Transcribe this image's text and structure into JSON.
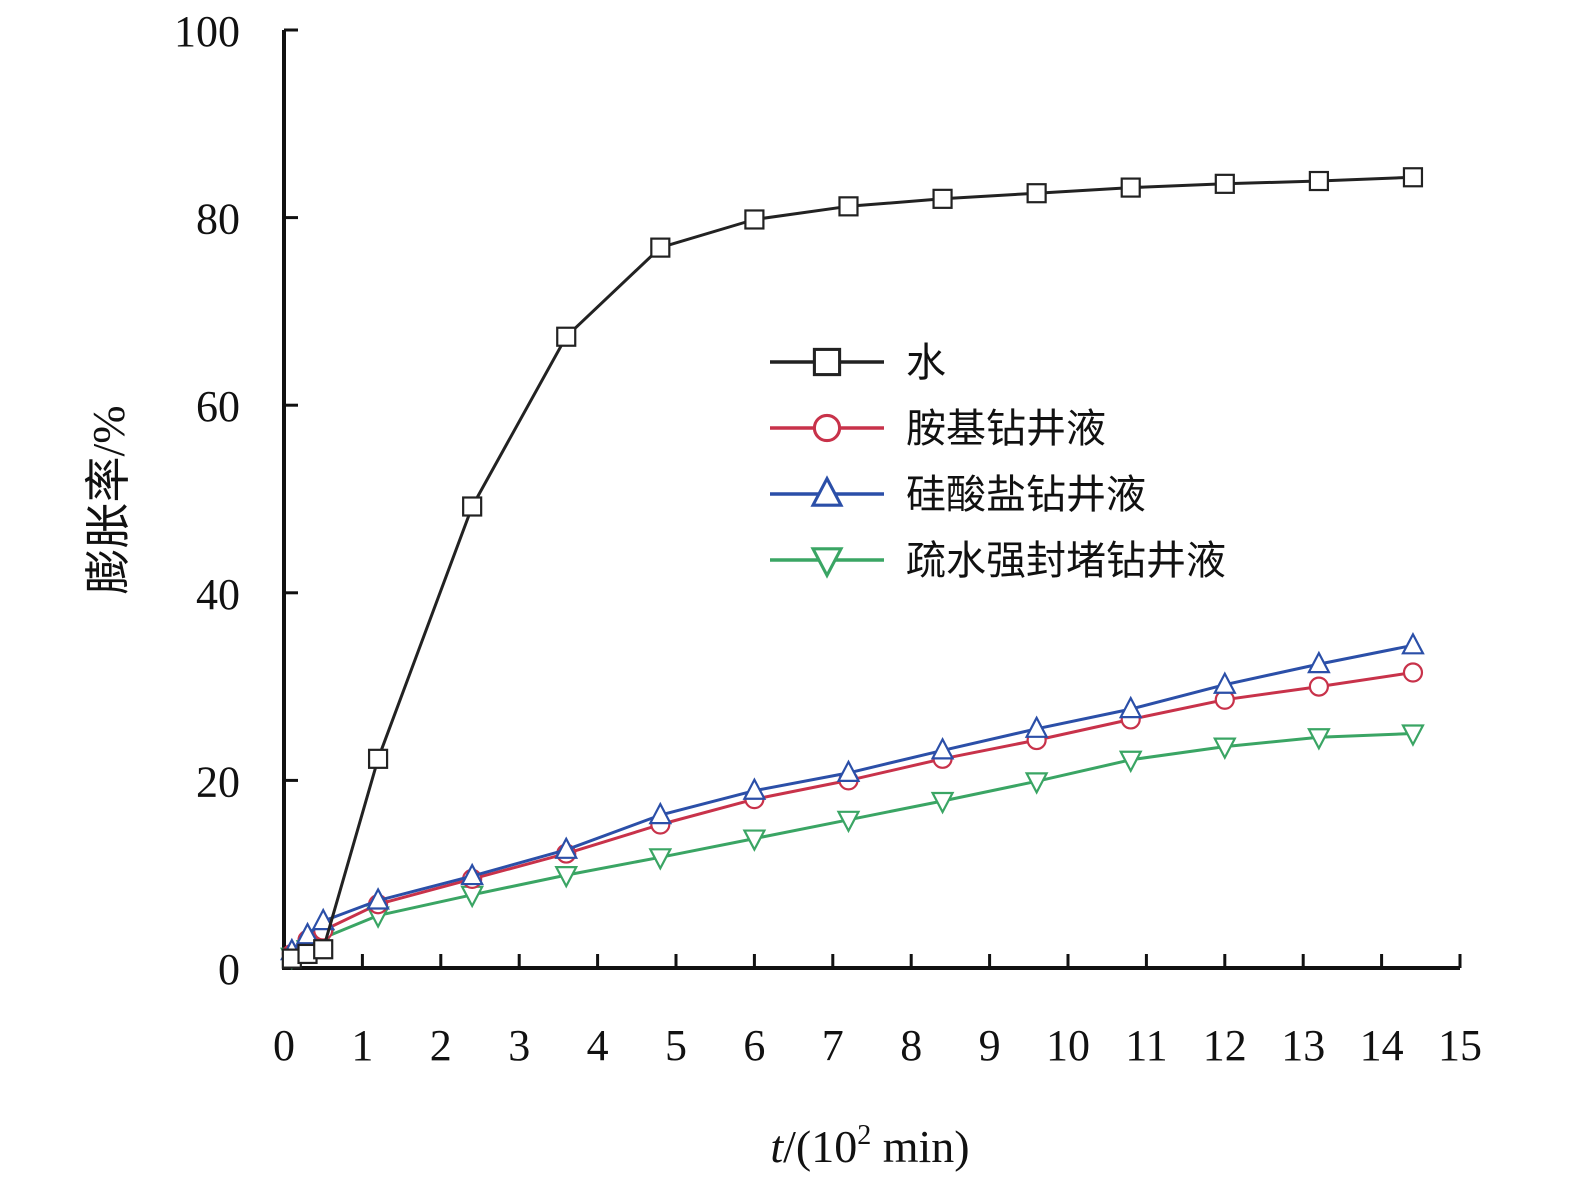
{
  "chart_data": {
    "type": "line",
    "title": "",
    "xlabel": {
      "italic": "t",
      "rest": "/(10",
      "sup": "2",
      "tail": " min)"
    },
    "ylabel": "膨胀率/%",
    "xlim": [
      0,
      15
    ],
    "ylim": [
      0,
      100
    ],
    "x_ticks": [
      "0",
      "1",
      "2",
      "3",
      "4",
      "5",
      "6",
      "7",
      "8",
      "9",
      "10",
      "11",
      "12",
      "13",
      "14",
      "15"
    ],
    "y_ticks": [
      "0",
      "20",
      "40",
      "60",
      "80",
      "100"
    ],
    "grid": false,
    "legend_position": "center-right",
    "series": [
      {
        "name": "水",
        "color": "#222222",
        "marker": "square",
        "x": [
          0.1,
          0.3,
          0.5,
          1.2,
          2.4,
          3.6,
          4.8,
          6.0,
          7.2,
          8.4,
          9.6,
          10.8,
          12.0,
          13.2,
          14.4
        ],
        "y": [
          1.0,
          1.5,
          2.0,
          22.3,
          49.2,
          67.3,
          76.8,
          79.8,
          81.2,
          82.0,
          82.6,
          83.2,
          83.6,
          83.9,
          84.3
        ]
      },
      {
        "name": "胺基钻井液",
        "color": "#c8324a",
        "marker": "circle",
        "x": [
          0.1,
          0.3,
          0.5,
          1.2,
          2.4,
          3.6,
          4.8,
          6.0,
          7.2,
          8.4,
          9.6,
          10.8,
          12.0,
          13.2,
          14.4
        ],
        "y": [
          1.5,
          3.0,
          4.0,
          6.8,
          9.5,
          12.2,
          15.3,
          18.0,
          20.0,
          22.3,
          24.3,
          26.5,
          28.6,
          30.0,
          31.5
        ]
      },
      {
        "name": "硅酸盐钻井液",
        "color": "#2b4fa8",
        "marker": "triangle-up",
        "x": [
          0.1,
          0.3,
          0.5,
          1.2,
          2.4,
          3.6,
          4.8,
          6.0,
          7.2,
          8.4,
          9.6,
          10.8,
          12.0,
          13.2,
          14.4
        ],
        "y": [
          1.8,
          3.5,
          5.0,
          7.2,
          9.8,
          12.6,
          16.3,
          18.9,
          20.8,
          23.2,
          25.5,
          27.6,
          30.2,
          32.4,
          34.4
        ]
      },
      {
        "name": "疏水强封堵钻井液",
        "color": "#3aa564",
        "marker": "triangle-down",
        "x": [
          0.1,
          0.3,
          0.5,
          1.2,
          2.4,
          3.6,
          4.8,
          6.0,
          7.2,
          8.4,
          9.6,
          10.8,
          12.0,
          13.2,
          14.4
        ],
        "y": [
          1.2,
          2.0,
          3.2,
          5.6,
          7.8,
          9.9,
          11.8,
          13.8,
          15.8,
          17.8,
          19.9,
          22.2,
          23.6,
          24.6,
          25.0
        ]
      }
    ]
  }
}
